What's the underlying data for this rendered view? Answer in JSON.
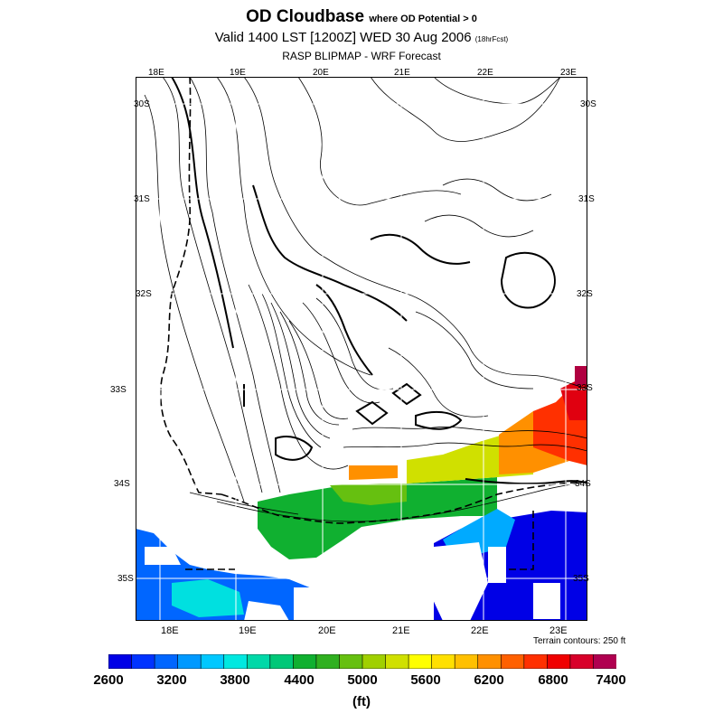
{
  "title": {
    "main": "OD Cloudbase",
    "main_suffix": "where OD Potential > 0",
    "valid": "Valid 1400 LST [1200Z] WED 30 Aug 2006",
    "valid_suffix": "(18hrFcst)",
    "model": "RASP BLIPMAP - WRF Forecast"
  },
  "axes": {
    "top_lon": [
      "18E",
      "19E",
      "20E",
      "21E",
      "22E",
      "23E"
    ],
    "bottom_lon": [
      "18E",
      "19E",
      "20E",
      "21E",
      "22E",
      "23E"
    ],
    "lat": [
      "30S",
      "31S",
      "32S",
      "33S",
      "34S",
      "35S"
    ]
  },
  "terrain_note": "Terrain contours: 250 ft",
  "colorbar": {
    "colors": [
      "#0000e6",
      "#0033ff",
      "#0066ff",
      "#0099ff",
      "#00c8ff",
      "#00e8e0",
      "#00d8a8",
      "#00c878",
      "#10b030",
      "#30b020",
      "#66c010",
      "#a0d000",
      "#d0e000",
      "#ffff00",
      "#ffe000",
      "#ffc000",
      "#ff9000",
      "#ff6000",
      "#ff3000",
      "#f00000",
      "#d8002a",
      "#b00050"
    ],
    "labels": [
      "2600",
      "3200",
      "3800",
      "4400",
      "5000",
      "5600",
      "6200",
      "6800",
      "7400"
    ],
    "units": "(ft)"
  },
  "map_colors": {
    "blue_dark": "#0000e6",
    "blue": "#0066ff",
    "blue_light": "#00aaff",
    "cyan": "#00e0e0",
    "green": "#10b030",
    "green_light": "#66c010",
    "yellow": "#d0e000",
    "orange": "#ff9000",
    "red_orange": "#ff3000",
    "red": "#e00010",
    "maroon": "#b00040"
  }
}
